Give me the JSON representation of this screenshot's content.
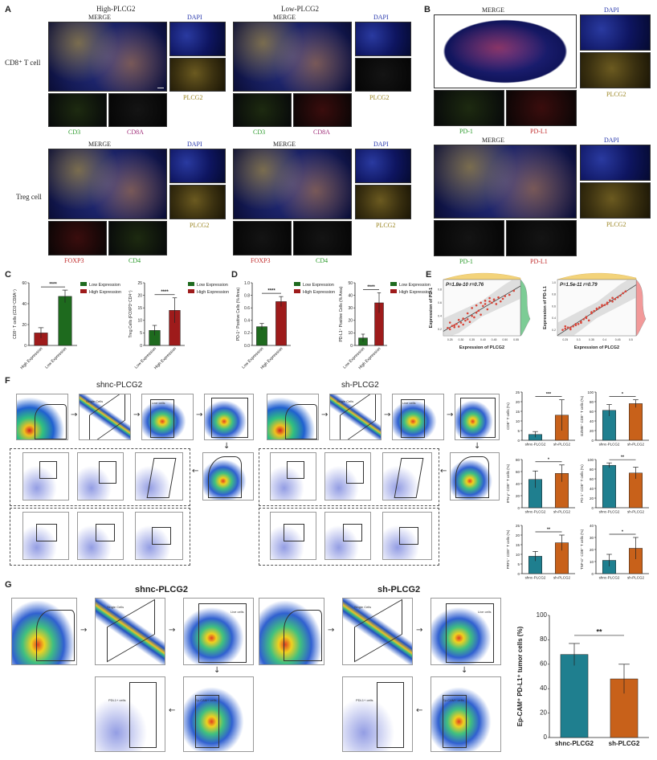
{
  "panels": {
    "A": {
      "letter": "A",
      "high_title": "High-PLCG2",
      "low_title": "Low-PLCG2",
      "row1_label": "CD8⁺ T cell",
      "row2_label": "Treg cell",
      "merge": "MERGE",
      "dapi": "DAPI",
      "plcg2": "PLCG2",
      "cd3": "CD3",
      "cd8a": "CD8A",
      "foxp3": "FOXP3",
      "cd4": "CD4"
    },
    "B": {
      "letter": "B",
      "merge": "MERGE",
      "dapi": "DAPI",
      "plcg2": "PLCG2",
      "pd1": "PD-1",
      "pdl1": "PD-L1"
    },
    "C": {
      "letter": "C"
    },
    "D": {
      "letter": "D"
    },
    "E": {
      "letter": "E",
      "left_stats": "P=1.8e-10  r=0.76",
      "right_stats": "P=1.5e-11  r=0.79",
      "left_ylabel": "Expression of PD-1",
      "right_ylabel": "Expression of PD-L1",
      "xlabel": "Expression of PLCG2",
      "left_xticks": [
        "0.25",
        "0.30",
        "0.35",
        "0.40",
        "0.45",
        "0.50",
        "0.55"
      ],
      "right_xticks": [
        "0.25",
        "0.3",
        "0.35",
        "0.4",
        "0.45",
        "0.5"
      ],
      "left_yticks": [
        "0.2",
        "0.4",
        "0.6",
        "0.8"
      ],
      "right_yticks": [
        "0.2",
        "0.4",
        "0.6",
        "0.8",
        "1.0"
      ]
    },
    "F": {
      "letter": "F",
      "left_title": "shnc-PLCG2",
      "right_title": "sh-PLCG2"
    },
    "G": {
      "letter": "G",
      "left_title": "shnc-PLCG2",
      "right_title": "sh-PLCG2"
    }
  },
  "flow_labels": {
    "single_cells": "Single Cells",
    "live_cells": "Live cells",
    "ep_cam": "Ep-CAM+ cells",
    "pdl1": "PDL1+ cells",
    "fsc_a": "FSC-A",
    "ssc_a": "SSC-A"
  },
  "colors": {
    "low_green": "#1e6a1e",
    "high_red": "#9e1b1b",
    "teal": "#1f7f8f",
    "orange": "#c8611a",
    "scatter_red": "#d9463a",
    "density_yellow": "#f3d37a",
    "density_green": "#5bbf7a",
    "density_pink": "#ef7f7f"
  },
  "chart_data": [
    {
      "id": "C-left",
      "type": "bar",
      "categories": [
        "High Expression",
        "Low Expression"
      ],
      "values": [
        12,
        47
      ],
      "errors": [
        5,
        6
      ],
      "colors": [
        "#9e1b1b",
        "#1e6a1e"
      ],
      "ylabel": "CD8⁺ T cells (CD3⁺CD8A⁺)",
      "ylim": [
        0,
        60
      ],
      "yticks": [
        "0",
        "20",
        "40",
        "60"
      ],
      "significance": "****",
      "legend": [
        "Low Expression",
        "High Expression"
      ]
    },
    {
      "id": "C-right",
      "type": "bar",
      "categories": [
        "Low Expression",
        "High Expression"
      ],
      "values": [
        6,
        14
      ],
      "errors": [
        2,
        5
      ],
      "colors": [
        "#1e6a1e",
        "#9e1b1b"
      ],
      "ylabel": "Treg Cells (FOXP3⁺CD4⁺)",
      "ylim": [
        0,
        25
      ],
      "yticks": [
        "0",
        "5",
        "10",
        "15",
        "20",
        "25"
      ],
      "significance": "****",
      "legend": [
        "Low Expression",
        "High Expression"
      ]
    },
    {
      "id": "D-left",
      "type": "bar",
      "categories": [
        "Low Expression",
        "High Expression"
      ],
      "values": [
        0.3,
        0.7
      ],
      "errors": [
        0.05,
        0.08
      ],
      "colors": [
        "#1e6a1e",
        "#9e1b1b"
      ],
      "ylabel": "PD-1⁺ Positive Cells (% Area)",
      "ylim": [
        0,
        1.0
      ],
      "yticks": [
        "0.0",
        "0.2",
        "0.4",
        "0.6",
        "0.8",
        "1.0"
      ],
      "significance": "****",
      "legend": [
        "Low Expression",
        "High Expression"
      ]
    },
    {
      "id": "D-right",
      "type": "bar",
      "categories": [
        "Low Expression",
        "High Expression"
      ],
      "values": [
        6,
        34
      ],
      "errors": [
        3,
        8
      ],
      "colors": [
        "#1e6a1e",
        "#9e1b1b"
      ],
      "ylabel": "PD-L1⁺ Positive Cells (% Area)",
      "ylim": [
        0,
        50
      ],
      "yticks": [
        "0",
        "10",
        "20",
        "30",
        "40",
        "50"
      ],
      "significance": "****",
      "legend": [
        "Low Expression",
        "High Expression"
      ]
    },
    {
      "id": "F-1",
      "type": "bar",
      "categories": [
        "shnc-PLCG2",
        "sh-PLCG2"
      ],
      "values": [
        3,
        13
      ],
      "errors": [
        1.5,
        8
      ],
      "colors": [
        "#1f7f8f",
        "#c8611a"
      ],
      "ylabel": "CD8⁺ T cells (%)",
      "ylim": [
        0,
        25
      ],
      "yticks": [
        "0",
        "5",
        "10",
        "15",
        "20",
        "25"
      ],
      "significance": "***"
    },
    {
      "id": "F-2",
      "type": "bar",
      "categories": [
        "shnc-PLCG2",
        "sh-PLCG2"
      ],
      "values": [
        62,
        76
      ],
      "errors": [
        12,
        8
      ],
      "colors": [
        "#1f7f8f",
        "#c8611a"
      ],
      "ylabel": "GZMB⁺ CD8⁺ T cells (%)",
      "ylim": [
        0,
        100
      ],
      "yticks": [
        "0",
        "20",
        "40",
        "60",
        "80",
        "100"
      ],
      "significance": "*"
    },
    {
      "id": "F-3",
      "type": "bar",
      "categories": [
        "shnc-PLCG2",
        "sh-PLCG2"
      ],
      "values": [
        47,
        57
      ],
      "errors": [
        14,
        14
      ],
      "colors": [
        "#1f7f8f",
        "#c8611a"
      ],
      "ylabel": "IFN-γ⁺ CD8⁺ T cells (%)",
      "ylim": [
        0,
        80
      ],
      "yticks": [
        "0",
        "20",
        "40",
        "60",
        "80"
      ],
      "significance": "*"
    },
    {
      "id": "F-4",
      "type": "bar",
      "categories": [
        "shnc-PLCG2",
        "sh-PLCG2"
      ],
      "values": [
        88,
        72
      ],
      "errors": [
        5,
        12
      ],
      "colors": [
        "#1f7f8f",
        "#c8611a"
      ],
      "ylabel": "PD-1⁺ CD8⁺ T cells (%)",
      "ylim": [
        0,
        100
      ],
      "yticks": [
        "0",
        "20",
        "40",
        "60",
        "80",
        "100"
      ],
      "significance": "**"
    },
    {
      "id": "F-5",
      "type": "bar",
      "categories": [
        "shnc-PLCG2",
        "sh-PLCG2"
      ],
      "values": [
        9,
        16
      ],
      "errors": [
        2.5,
        4
      ],
      "colors": [
        "#1f7f8f",
        "#c8611a"
      ],
      "ylabel": "PRF1⁺ CD8⁺ T cells (%)",
      "ylim": [
        0,
        25
      ],
      "yticks": [
        "0",
        "5",
        "10",
        "15",
        "20",
        "25"
      ],
      "significance": "**"
    },
    {
      "id": "F-6",
      "type": "bar",
      "categories": [
        "shnc-PLCG2",
        "sh-PLCG2"
      ],
      "values": [
        11,
        21
      ],
      "errors": [
        5,
        9
      ],
      "colors": [
        "#1f7f8f",
        "#c8611a"
      ],
      "ylabel": "TNF-α⁺ CD8⁺ T cells (%)",
      "ylim": [
        0,
        40
      ],
      "yticks": [
        "0",
        "10",
        "20",
        "30",
        "40"
      ],
      "significance": "*"
    },
    {
      "id": "G",
      "type": "bar",
      "categories": [
        "shnc-PLCG2",
        "sh-PLCG2"
      ],
      "values": [
        68,
        48
      ],
      "errors": [
        9,
        12
      ],
      "colors": [
        "#1f7f8f",
        "#c8611a"
      ],
      "ylabel": "Ep-CAM⁺ PD-L1⁺ tumor cells (%)",
      "ylim": [
        0,
        100
      ],
      "yticks": [
        "0",
        "20",
        "40",
        "60",
        "80",
        "100"
      ],
      "significance": "**"
    },
    {
      "id": "E-left",
      "type": "scatter",
      "xlabel": "Expression of PLCG2",
      "ylabel": "Expression of PD-1",
      "annotation": "P=1.8e-10  r=0.76",
      "xlim": [
        0.22,
        0.57
      ],
      "ylim": [
        0.1,
        0.95
      ],
      "x": [
        0.24,
        0.25,
        0.26,
        0.27,
        0.28,
        0.29,
        0.3,
        0.31,
        0.32,
        0.33,
        0.34,
        0.35,
        0.36,
        0.37,
        0.38,
        0.39,
        0.4,
        0.41,
        0.42,
        0.43,
        0.44,
        0.45,
        0.46,
        0.47,
        0.48,
        0.49,
        0.5,
        0.52,
        0.54,
        0.25,
        0.27,
        0.29,
        0.31,
        0.33,
        0.35,
        0.37,
        0.39,
        0.41,
        0.43,
        0.45
      ],
      "y": [
        0.22,
        0.2,
        0.25,
        0.23,
        0.28,
        0.24,
        0.3,
        0.27,
        0.33,
        0.35,
        0.31,
        0.4,
        0.38,
        0.45,
        0.48,
        0.42,
        0.55,
        0.58,
        0.5,
        0.62,
        0.6,
        0.65,
        0.58,
        0.68,
        0.62,
        0.66,
        0.7,
        0.72,
        0.78,
        0.3,
        0.26,
        0.34,
        0.36,
        0.44,
        0.52,
        0.56,
        0.6,
        0.63,
        0.67,
        0.64
      ]
    },
    {
      "id": "E-right",
      "type": "scatter",
      "xlabel": "Expression of PLCG2",
      "ylabel": "Expression of PD-L1",
      "annotation": "P=1.5e-11  r=0.79",
      "xlim": [
        0.22,
        0.52
      ],
      "ylim": [
        0.1,
        1.05
      ],
      "x": [
        0.24,
        0.25,
        0.26,
        0.27,
        0.28,
        0.29,
        0.3,
        0.31,
        0.32,
        0.33,
        0.34,
        0.35,
        0.36,
        0.37,
        0.38,
        0.39,
        0.4,
        0.41,
        0.42,
        0.43,
        0.44,
        0.45,
        0.46,
        0.47,
        0.48,
        0.25,
        0.27,
        0.29,
        0.31,
        0.33,
        0.35,
        0.37,
        0.39,
        0.41,
        0.43
      ],
      "y": [
        0.2,
        0.22,
        0.24,
        0.21,
        0.26,
        0.28,
        0.3,
        0.32,
        0.38,
        0.42,
        0.36,
        0.48,
        0.52,
        0.55,
        0.58,
        0.6,
        0.62,
        0.66,
        0.7,
        0.68,
        0.72,
        0.75,
        0.78,
        0.82,
        0.85,
        0.26,
        0.24,
        0.3,
        0.34,
        0.4,
        0.5,
        0.56,
        0.62,
        0.64,
        0.74
      ]
    }
  ]
}
